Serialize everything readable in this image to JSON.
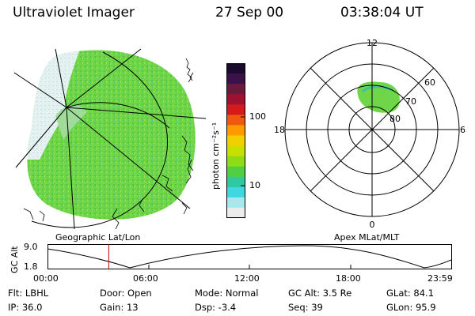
{
  "header": {
    "instrument": "Ultraviolet Imager",
    "date": "27 Sep 00",
    "time": "03:38:04 UT"
  },
  "colorbar": {
    "unit_label": "photon cm⁻²s⁻¹",
    "ticks": [
      "100",
      "10"
    ],
    "colors": [
      "#1a0a2e",
      "#3b1248",
      "#6a1a3c",
      "#9e1230",
      "#d41a1a",
      "#f05a10",
      "#ff9a00",
      "#f0d000",
      "#c8e000",
      "#8edc18",
      "#50d040",
      "#30c8a0",
      "#40d8e0",
      "#a8e8ec",
      "#ececec"
    ]
  },
  "geo_map": {
    "caption": "Geographic Lat/Lon",
    "colors": {
      "aurora": "#6fd64a",
      "aurora_dim": "#9fdc9a",
      "haze": "#d8ecee"
    }
  },
  "polar_plot": {
    "caption": "Apex MLat/MLT",
    "mlt_labels": {
      "top": "12",
      "left": "18",
      "right": "6",
      "bottom": "0"
    },
    "mlat_labels": [
      "60",
      "70",
      "80"
    ]
  },
  "altitude_panel": {
    "ylabel": "GC Alt",
    "yticks": [
      "9.0",
      "1.8"
    ],
    "xticks": [
      "00:00",
      "06:00",
      "12:00",
      "18:00",
      "23:59"
    ],
    "marker_color": "#cc0000",
    "marker_time_hours": 3.634
  },
  "info": {
    "filter": "Flt: LBHL",
    "ip": "IP: 36.0",
    "door": "Door: Open",
    "gain": "Gain: 13",
    "mode": "Mode: Normal",
    "dsp": "Dsp:   -3.4",
    "gc_alt": "GC Alt: 3.5 Re",
    "seq": "Seq: 39",
    "glat": "GLat:   84.1",
    "glon": "GLon:   95.9"
  }
}
